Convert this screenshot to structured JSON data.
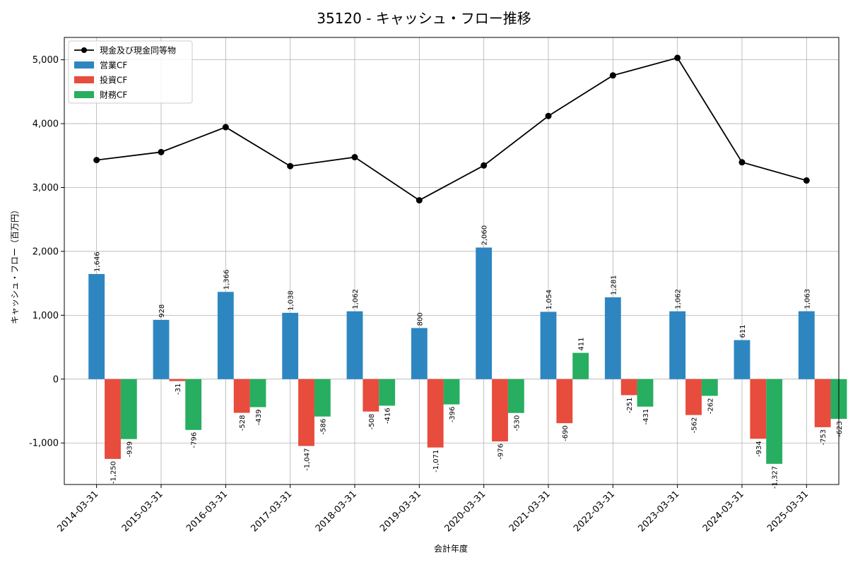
{
  "chart_data": {
    "type": "bar",
    "title": "35120 - キャッシュ・フロー推移",
    "xlabel": "会計年度",
    "ylabel": "キャッシュ・フロー（百万円）",
    "ylim": [
      -1650,
      5350
    ],
    "yticks": [
      -1000,
      0,
      1000,
      2000,
      3000,
      4000,
      5000
    ],
    "ytick_labels": [
      "-1,000",
      "0",
      "1,000",
      "2,000",
      "3,000",
      "4,000",
      "5,000"
    ],
    "grid": true,
    "legend_position": "top-left",
    "categories": [
      "2014-03-31",
      "2015-03-31",
      "2016-03-31",
      "2017-03-31",
      "2018-03-31",
      "2019-03-31",
      "2020-03-31",
      "2021-03-31",
      "2022-03-31",
      "2023-03-31",
      "2024-03-31",
      "2025-03-31"
    ],
    "series": [
      {
        "name": "営業CF",
        "kind": "bar",
        "color": "#2e86c1",
        "values": [
          1646,
          928,
          1366,
          1038,
          1062,
          800,
          2060,
          1054,
          1281,
          1062,
          611,
          1063
        ],
        "labels": [
          "1,646",
          "928",
          "1,366",
          "1,038",
          "1,062",
          "800",
          "2,060",
          "1,054",
          "1,281",
          "1,062",
          "611",
          "1,063"
        ]
      },
      {
        "name": "投資CF",
        "kind": "bar",
        "color": "#e74c3c",
        "values": [
          -1250,
          -31,
          -528,
          -1047,
          -508,
          -1071,
          -976,
          -690,
          -251,
          -562,
          -934,
          -753
        ],
        "labels": [
          "-1,250",
          "-31",
          "-528",
          "-1,047",
          "-508",
          "-1,071",
          "-976",
          "-690",
          "-251",
          "-562",
          "-934",
          "-753"
        ]
      },
      {
        "name": "財務CF",
        "kind": "bar",
        "color": "#27ae60",
        "values": [
          -939,
          -796,
          -439,
          -586,
          -416,
          -396,
          -530,
          411,
          -431,
          -262,
          -1327,
          -623
        ],
        "labels": [
          "-939",
          "-796",
          "-439",
          "-586",
          "-416",
          "-396",
          "-530",
          "411",
          "-431",
          "-262",
          "-1,327",
          "-623"
        ]
      },
      {
        "name": "現金及び現金同等物",
        "kind": "line",
        "color": "#000000",
        "values": [
          3430,
          3555,
          3945,
          3335,
          3475,
          2800,
          3345,
          4120,
          4755,
          5030,
          3395,
          3110
        ]
      }
    ]
  }
}
